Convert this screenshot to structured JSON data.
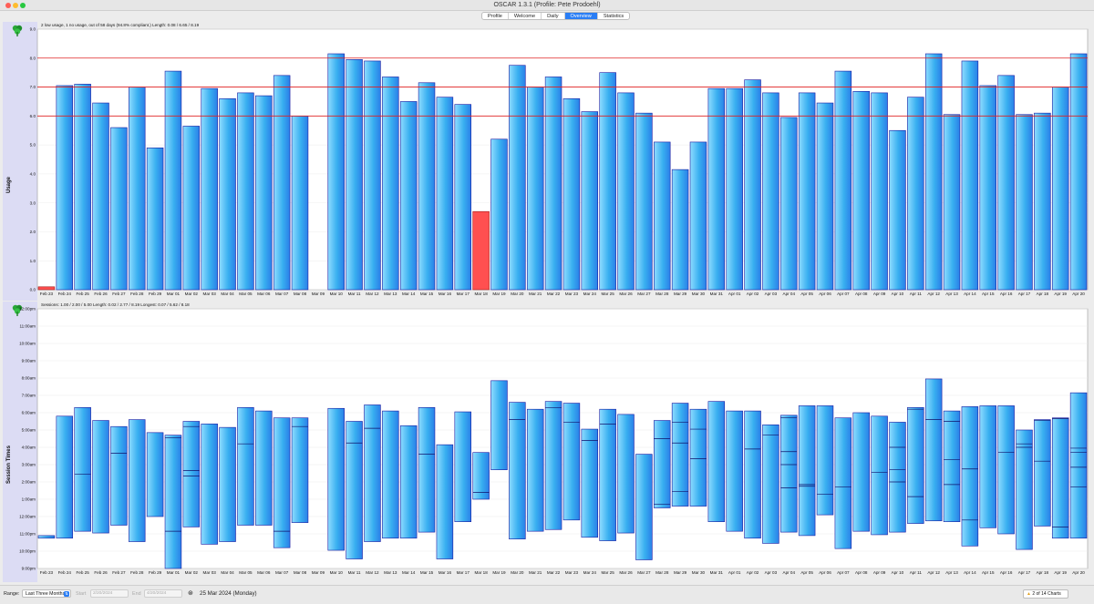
{
  "window": {
    "title": "OSCAR 1.3.1 (Profile: Pete Prodoehl)"
  },
  "tabs": [
    {
      "label": "Profile",
      "active": false
    },
    {
      "label": "Welcome",
      "active": false
    },
    {
      "label": "Daily",
      "active": false
    },
    {
      "label": "Overview",
      "active": true
    },
    {
      "label": "Statistics",
      "active": false
    }
  ],
  "colors": {
    "bar": "#38aff0",
    "bar_edge": "#1a1aa0",
    "below_threshold": "#ff5050",
    "threshold_line": "#e02020",
    "side_panel": "#dcdcf4"
  },
  "dates": [
    "Feb 23",
    "Feb 24",
    "Feb 25",
    "Feb 26",
    "Feb 27",
    "Feb 28",
    "Feb 29",
    "Mar 01",
    "Mar 02",
    "Mar 03",
    "Mar 04",
    "Mar 05",
    "Mar 06",
    "Mar 07",
    "Mar 08",
    "Mar 09",
    "Mar 10",
    "Mar 11",
    "Mar 12",
    "Mar 13",
    "Mar 14",
    "Mar 15",
    "Mar 16",
    "Mar 17",
    "Mar 18",
    "Mar 19",
    "Mar 20",
    "Mar 21",
    "Mar 22",
    "Mar 23",
    "Mar 24",
    "Mar 25",
    "Mar 26",
    "Mar 27",
    "Mar 28",
    "Mar 29",
    "Mar 30",
    "Mar 31",
    "Apr 01",
    "Apr 02",
    "Apr 03",
    "Apr 04",
    "Apr 05",
    "Apr 06",
    "Apr 07",
    "Apr 08",
    "Apr 09",
    "Apr 10",
    "Apr 11",
    "Apr 12",
    "Apr 13",
    "Apr 14",
    "Apr 15",
    "Apr 16",
    "Apr 17",
    "Apr 18",
    "Apr 19",
    "Apr 20"
  ],
  "chart_data": [
    {
      "type": "bar",
      "ylabel": "Usage",
      "subtitle": "2 low usage, 1 no usage, out of 58 days (94.8% compliant.) Length: 0.08 / 6.65 / 8.19",
      "ylim": [
        0,
        9
      ],
      "yticks": [
        "0.0",
        "1.0",
        "2.0",
        "3.0",
        "4.0",
        "5.0",
        "6.0",
        "7.0",
        "8.0",
        "9.0"
      ],
      "thresholds": [
        6,
        7,
        8
      ],
      "values": [
        0.1,
        7.05,
        7.1,
        6.45,
        5.6,
        7.0,
        4.9,
        7.55,
        5.65,
        6.95,
        6.6,
        6.8,
        6.7,
        7.4,
        6.0,
        0,
        8.15,
        7.95,
        7.9,
        7.35,
        6.5,
        7.15,
        6.65,
        6.4,
        2.7,
        5.2,
        7.75,
        7.0,
        7.35,
        6.6,
        6.15,
        7.5,
        6.8,
        6.1,
        5.1,
        4.15,
        5.1,
        6.95,
        6.95,
        7.25,
        6.8,
        5.95,
        6.8,
        6.45,
        7.55,
        6.85,
        6.8,
        5.5,
        6.65,
        8.15,
        6.05,
        7.9,
        7.05,
        7.4,
        6.05,
        6.1,
        7.0,
        8.15
      ],
      "low_usage": [
        0,
        24
      ]
    },
    {
      "type": "bar",
      "ylabel": "Session Times",
      "subtitle": "Sessions: 1.00 / 2.00 / 5.00 Length: 0.02 / 2.77 / 8.19 Longest: 0.07 / 5.62 / 8.18",
      "yticks": [
        "9:00pm",
        "10:00pm",
        "11:00pm",
        "12:00am",
        "1:00am",
        "2:00am",
        "3:00am",
        "4:00am",
        "5:00am",
        "6:00am",
        "7:00am",
        "8:00am",
        "9:00am",
        "10:00am",
        "11:00am",
        "12:00pm"
      ],
      "ylim": [
        -3,
        12
      ],
      "sessions": [
        {
          "start": -1.25,
          "end": -1.1,
          "splits": []
        },
        {
          "start": -1.25,
          "end": 5.8,
          "splits": []
        },
        {
          "start": -0.85,
          "end": 6.3,
          "splits": [
            2.45
          ]
        },
        {
          "start": -0.95,
          "end": 5.55,
          "splits": []
        },
        {
          "start": -0.5,
          "end": 5.2,
          "splits": [
            3.65
          ]
        },
        {
          "start": -1.45,
          "end": 5.6,
          "splits": []
        },
        {
          "start": 0.0,
          "end": 4.85,
          "splits": []
        },
        {
          "start": -3.0,
          "end": 4.7,
          "splits": [
            4.55,
            -0.85
          ]
        },
        {
          "start": -0.6,
          "end": 5.5,
          "splits": [
            5.2,
            2.65,
            2.35
          ]
        },
        {
          "start": -1.6,
          "end": 5.35,
          "splits": []
        },
        {
          "start": -1.45,
          "end": 5.15,
          "splits": []
        },
        {
          "start": -0.5,
          "end": 6.3,
          "splits": [
            4.2
          ]
        },
        {
          "start": -0.5,
          "end": 6.1,
          "splits": []
        },
        {
          "start": -1.8,
          "end": 5.7,
          "splits": [
            -0.85
          ]
        },
        {
          "start": -0.35,
          "end": 5.7,
          "splits": [
            5.2
          ]
        },
        {
          "start": 0,
          "end": 0,
          "splits": []
        },
        {
          "start": -1.95,
          "end": 6.25,
          "splits": []
        },
        {
          "start": -2.45,
          "end": 5.5,
          "splits": [
            4.25
          ]
        },
        {
          "start": -1.45,
          "end": 6.45,
          "splits": [
            5.1
          ]
        },
        {
          "start": -1.25,
          "end": 6.1,
          "splits": []
        },
        {
          "start": -1.25,
          "end": 5.25,
          "splits": []
        },
        {
          "start": -0.9,
          "end": 6.3,
          "splits": [
            3.6
          ]
        },
        {
          "start": -2.45,
          "end": 4.15,
          "splits": []
        },
        {
          "start": -0.3,
          "end": 6.05,
          "splits": []
        },
        {
          "start": 1.0,
          "end": 3.7,
          "splits": [
            1.4
          ]
        },
        {
          "start": 2.7,
          "end": 7.85,
          "splits": []
        },
        {
          "start": -1.3,
          "end": 6.6,
          "splits": [
            5.6
          ]
        },
        {
          "start": -0.85,
          "end": 6.2,
          "splits": []
        },
        {
          "start": -0.75,
          "end": 6.65,
          "splits": [
            6.3
          ]
        },
        {
          "start": -0.2,
          "end": 6.55,
          "splits": [
            5.45
          ]
        },
        {
          "start": -1.2,
          "end": 5.05,
          "splits": [
            4.4
          ]
        },
        {
          "start": -1.4,
          "end": 6.2,
          "splits": [
            5.35
          ]
        },
        {
          "start": -0.95,
          "end": 5.9,
          "splits": []
        },
        {
          "start": -2.5,
          "end": 3.6,
          "splits": []
        },
        {
          "start": 0.5,
          "end": 5.55,
          "splits": [
            4.5,
            0.7
          ]
        },
        {
          "start": 0.6,
          "end": 6.55,
          "splits": [
            5.45,
            4.25,
            1.45
          ]
        },
        {
          "start": 0.6,
          "end": 6.2,
          "splits": [
            5.05,
            3.35
          ]
        },
        {
          "start": -0.3,
          "end": 6.65,
          "splits": []
        },
        {
          "start": -0.85,
          "end": 6.1,
          "splits": []
        },
        {
          "start": -1.25,
          "end": 6.1,
          "splits": [
            3.9
          ]
        },
        {
          "start": -1.55,
          "end": 5.3,
          "splits": [
            4.7
          ]
        },
        {
          "start": -0.9,
          "end": 5.85,
          "splits": [
            5.7,
            3.75,
            3.0,
            1.65
          ]
        },
        {
          "start": -1.1,
          "end": 6.4,
          "splits": [
            1.85,
            1.75
          ]
        },
        {
          "start": 0.1,
          "end": 6.4,
          "splits": [
            1.3
          ]
        },
        {
          "start": -1.85,
          "end": 5.7,
          "splits": [
            1.7
          ]
        },
        {
          "start": -0.85,
          "end": 6.0,
          "splits": []
        },
        {
          "start": -1.05,
          "end": 5.8,
          "splits": [
            2.55
          ]
        },
        {
          "start": -0.9,
          "end": 5.45,
          "splits": [
            4.0,
            2.7,
            2.0
          ]
        },
        {
          "start": -0.4,
          "end": 6.3,
          "splits": [
            6.2,
            1.15
          ]
        },
        {
          "start": -0.25,
          "end": 7.95,
          "splits": [
            5.6
          ]
        },
        {
          "start": -0.3,
          "end": 6.1,
          "splits": [
            5.5,
            3.3,
            1.85
          ]
        },
        {
          "start": -1.7,
          "end": 6.35,
          "splits": [
            2.75,
            -0.2
          ]
        },
        {
          "start": -0.65,
          "end": 6.4,
          "splits": []
        },
        {
          "start": -1.0,
          "end": 6.4,
          "splits": [
            3.7
          ]
        },
        {
          "start": -1.9,
          "end": 5.0,
          "splits": [
            4.2,
            4.0
          ]
        },
        {
          "start": -0.55,
          "end": 5.6,
          "splits": [
            5.55,
            3.2
          ]
        },
        {
          "start": -1.25,
          "end": 5.7,
          "splits": [
            5.65,
            -0.6
          ]
        },
        {
          "start": -1.25,
          "end": 7.15,
          "splits": [
            3.95,
            3.7,
            2.85,
            1.7
          ]
        }
      ]
    }
  ],
  "bottom": {
    "range_label": "Range:",
    "range_value": "Last Three Months",
    "start_label": "Start",
    "start_value": "2/20/2024",
    "end_label": "End",
    "end_value": "4/20/2024",
    "selected_date": "25 Mar 2024 (Monday)",
    "charts_button": "2 of 14 Charts"
  }
}
